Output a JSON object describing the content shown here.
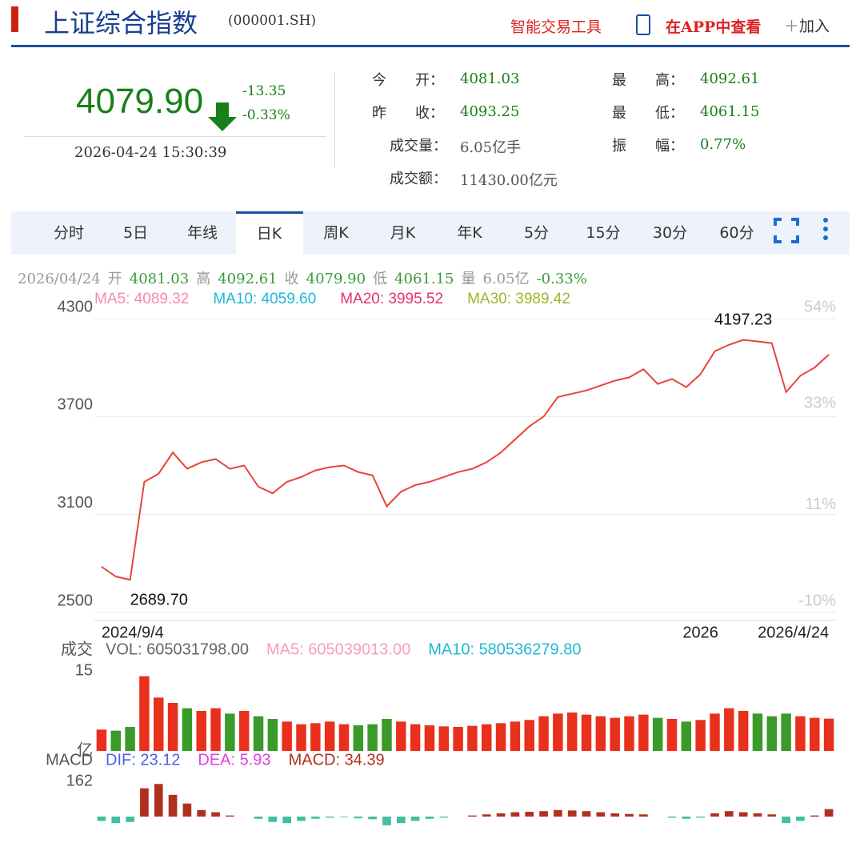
{
  "header": {
    "title": "上证综合指数",
    "code": "(000001.SH)",
    "tool": "智能交易工具",
    "app": "在APP中查看",
    "add": "加入"
  },
  "quote": {
    "price": "4079.90",
    "change": "-13.35",
    "pct": "-0.33%",
    "time": "2026-04-24 15:30:39"
  },
  "stats": [
    {
      "label": "今　　开：",
      "value": "4081.03"
    },
    {
      "label": "最　　高：",
      "value": "4092.61"
    },
    {
      "label": "昨　　收：",
      "value": "4093.25"
    },
    {
      "label": "最　　低：",
      "value": "4061.15"
    },
    {
      "label": "成交量：",
      "value": "6.05亿手"
    },
    {
      "label": "振　　幅：",
      "value": "0.77%"
    },
    {
      "label": "成交额：",
      "value": "11430.00亿元"
    }
  ],
  "tabs": [
    "分时",
    "5日",
    "年线",
    "日K",
    "周K",
    "月K",
    "年K",
    "5分",
    "15分",
    "30分",
    "60分"
  ],
  "active_tab": 3,
  "info_line": [
    {
      "text": "2026/04/24",
      "color": "#999"
    },
    {
      "text": "开",
      "color": "#999"
    },
    {
      "text": "4081.03",
      "color": "#3a9b3a"
    },
    {
      "text": "高",
      "color": "#999"
    },
    {
      "text": "4092.61",
      "color": "#3a9b3a"
    },
    {
      "text": "收",
      "color": "#999"
    },
    {
      "text": "4079.90",
      "color": "#3a9b3a"
    },
    {
      "text": "低",
      "color": "#999"
    },
    {
      "text": "4061.15",
      "color": "#3a9b3a"
    },
    {
      "text": "量",
      "color": "#999"
    },
    {
      "text": "6.05亿",
      "color": "#999"
    },
    {
      "text": "-0.33%",
      "color": "#3a9b3a"
    }
  ],
  "ma_legend": [
    {
      "text": "MA5: 4089.32",
      "color": "#f58ca8"
    },
    {
      "text": "MA10: 4059.60",
      "color": "#1fb8d6"
    },
    {
      "text": "MA20: 3995.52",
      "color": "#e6336b"
    },
    {
      "text": "MA30: 3989.42",
      "color": "#9ab82a"
    }
  ],
  "chart_data": [
    {
      "type": "line",
      "color": "#e8443a",
      "ylim": [
        2500,
        4300
      ],
      "yticks": [
        2500,
        3100,
        3700,
        4300
      ],
      "y2lim": [
        -10,
        54
      ],
      "y2ticks": [
        {
          "value": -10,
          "label": "-10%"
        },
        {
          "value": 11,
          "label": "11%"
        },
        {
          "value": 33,
          "label": "33%"
        },
        {
          "value": 54,
          "label": "54%"
        }
      ],
      "annotations": [
        "4197.23",
        "2689.70"
      ],
      "grid": true,
      "categories": [
        "2024/9/4",
        null,
        null,
        null,
        null,
        null,
        null,
        null,
        null,
        null,
        null,
        null,
        null,
        null,
        null,
        null,
        null,
        null,
        null,
        null,
        null,
        null,
        null,
        null,
        null,
        null,
        null,
        null,
        null,
        null,
        null,
        null,
        null,
        null,
        null,
        null,
        null,
        null,
        null,
        null,
        null,
        null,
        "2026",
        null,
        null,
        null,
        null,
        null,
        null,
        null,
        null,
        "2026/4/24"
      ],
      "values": [
        2780,
        2720,
        2700,
        3300,
        3350,
        3480,
        3380,
        3420,
        3440,
        3380,
        3400,
        3270,
        3230,
        3300,
        3330,
        3370,
        3390,
        3400,
        3360,
        3340,
        3150,
        3240,
        3280,
        3300,
        3330,
        3360,
        3380,
        3420,
        3480,
        3560,
        3640,
        3700,
        3820,
        3840,
        3860,
        3890,
        3920,
        3940,
        3990,
        3900,
        3930,
        3880,
        3960,
        4100,
        4140,
        4170,
        4160,
        4150,
        3850,
        3950,
        4000,
        4079.9
      ]
    },
    {
      "type": "bar",
      "label": "成交",
      "legend": [
        {
          "text": "VOL: 605031798.00",
          "color": "#666"
        },
        {
          "text": "MA5: 605039013.00",
          "color": "#f5a0b8"
        },
        {
          "text": "MA10: 580536279.80",
          "color": "#1fb8d6"
        }
      ],
      "ylim": [
        0,
        15
      ],
      "yticks": [
        {
          "value": 0,
          "label": "亿"
        },
        15
      ],
      "values": [
        4,
        3.8,
        4.5,
        14,
        10,
        9,
        8,
        7.5,
        8,
        7,
        7.5,
        6.5,
        6,
        5.5,
        5,
        5.2,
        5.5,
        5,
        4.8,
        5,
        6,
        5.5,
        5,
        4.8,
        4.6,
        4.5,
        4.7,
        5,
        5.2,
        5.5,
        5.8,
        6.5,
        7,
        7.2,
        6.8,
        6.5,
        6.2,
        6.5,
        6.8,
        6.2,
        6,
        5.5,
        5.8,
        7,
        8,
        7.5,
        7,
        6.5,
        7,
        6.5,
        6.2,
        6.05
      ]
    },
    {
      "type": "macd",
      "label": "MACD",
      "legend": [
        {
          "text": "DIF: 23.12",
          "color": "#4a5ee8"
        },
        {
          "text": "DEA: 5.93",
          "color": "#e040e0"
        },
        {
          "text": "MACD: 34.39",
          "color": "#b03020"
        }
      ],
      "ylim": [
        -162,
        162
      ],
      "yticks": [
        162
      ],
      "values": [
        -20,
        -30,
        -25,
        130,
        150,
        100,
        60,
        30,
        20,
        5,
        0,
        -10,
        -25,
        -30,
        -20,
        -10,
        -5,
        -3,
        -8,
        -12,
        -40,
        -30,
        -20,
        -10,
        -5,
        0,
        5,
        10,
        15,
        20,
        22,
        25,
        30,
        28,
        25,
        20,
        15,
        12,
        10,
        0,
        -5,
        -10,
        -5,
        15,
        25,
        20,
        15,
        10,
        -30,
        -20,
        5,
        34.39
      ]
    }
  ]
}
